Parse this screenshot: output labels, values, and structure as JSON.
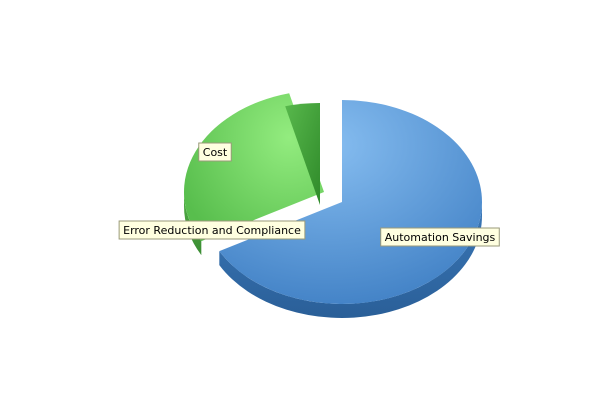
{
  "chart_data": {
    "type": "pie",
    "style": "3d-exploded",
    "categories": [
      "Automation Savings",
      "Cost",
      "Error Reduction and Compliance"
    ],
    "values": [
      67,
      29,
      4
    ],
    "colors": [
      "#5a93d1",
      "#6cd45f",
      "#3fa33a"
    ],
    "title": "",
    "legend": "none"
  }
}
